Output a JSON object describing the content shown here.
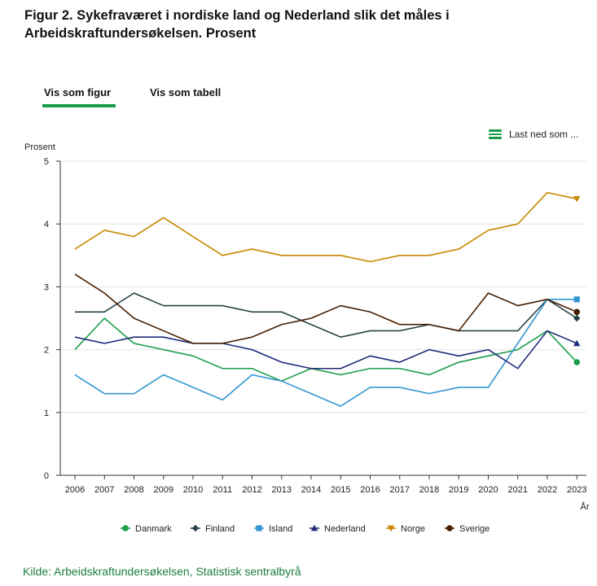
{
  "header": {
    "title": "Figur 2. Sykefraværet i nordiske land og Nederland slik det måles i Arbeidskraftundersøkelsen. Prosent"
  },
  "tabs": [
    {
      "label": "Vis som figur",
      "active": true
    },
    {
      "label": "Vis som tabell",
      "active": false
    }
  ],
  "download": {
    "label": "Last ned som ..."
  },
  "source": "Kilde: Arbeidskraftundersøkelsen, Statistisk sentralbyrå",
  "chart_data": {
    "type": "line",
    "title": "Figur 2. Sykefraværet i nordiske land og Nederland slik det måles i Arbeidskraftundersøkelsen. Prosent",
    "ylabel": "Prosent",
    "xlabel": "År",
    "ylim": [
      0,
      5
    ],
    "yticks": [
      "0",
      "1",
      "2",
      "3",
      "4",
      "5"
    ],
    "categories": [
      "2006",
      "2007",
      "2008",
      "2009",
      "2010",
      "2011",
      "2012",
      "2013",
      "2014",
      "2015",
      "2016",
      "2017",
      "2018",
      "2019",
      "2020",
      "2021",
      "2022",
      "2023"
    ],
    "grid": "horizontal",
    "legend_position": "bottom",
    "series": [
      {
        "name": "Danmark",
        "color": "#1a9d49",
        "marker": "circle",
        "values": [
          2.0,
          2.5,
          2.1,
          2.0,
          1.9,
          1.7,
          1.7,
          1.5,
          1.7,
          1.6,
          1.7,
          1.7,
          1.6,
          1.8,
          1.9,
          2.0,
          2.3,
          1.8
        ]
      },
      {
        "name": "Finland",
        "color": "#274247",
        "marker": "diamond",
        "values": [
          2.6,
          2.6,
          2.9,
          2.7,
          2.7,
          2.7,
          2.6,
          2.6,
          2.4,
          2.2,
          2.3,
          2.3,
          2.4,
          2.3,
          2.3,
          2.3,
          2.8,
          2.5
        ]
      },
      {
        "name": "Island",
        "color": "#3396d2",
        "marker": "square",
        "values": [
          1.6,
          1.3,
          1.3,
          1.6,
          1.4,
          1.2,
          1.6,
          1.5,
          1.3,
          1.1,
          1.4,
          1.4,
          1.3,
          1.4,
          1.4,
          2.1,
          2.8,
          2.8
        ]
      },
      {
        "name": "Nederland",
        "color": "#1f2a7a",
        "marker": "triangle",
        "values": [
          2.2,
          2.1,
          2.2,
          2.2,
          2.1,
          2.1,
          2.0,
          1.8,
          1.7,
          1.7,
          1.9,
          1.8,
          2.0,
          1.9,
          2.0,
          1.7,
          2.3,
          2.1
        ]
      },
      {
        "name": "Norge",
        "color": "#c78800",
        "marker": "triangle-down",
        "values": [
          3.6,
          3.9,
          3.8,
          4.1,
          3.8,
          3.5,
          3.6,
          3.5,
          3.5,
          3.5,
          3.4,
          3.5,
          3.5,
          3.6,
          3.9,
          4.0,
          4.5,
          4.4
        ]
      },
      {
        "name": "Sverige",
        "color": "#471f00",
        "marker": "circle",
        "values": [
          3.2,
          2.9,
          2.5,
          2.3,
          2.1,
          2.1,
          2.2,
          2.4,
          2.5,
          2.7,
          2.6,
          2.4,
          2.4,
          2.3,
          2.9,
          2.7,
          2.8,
          2.6
        ]
      }
    ]
  }
}
